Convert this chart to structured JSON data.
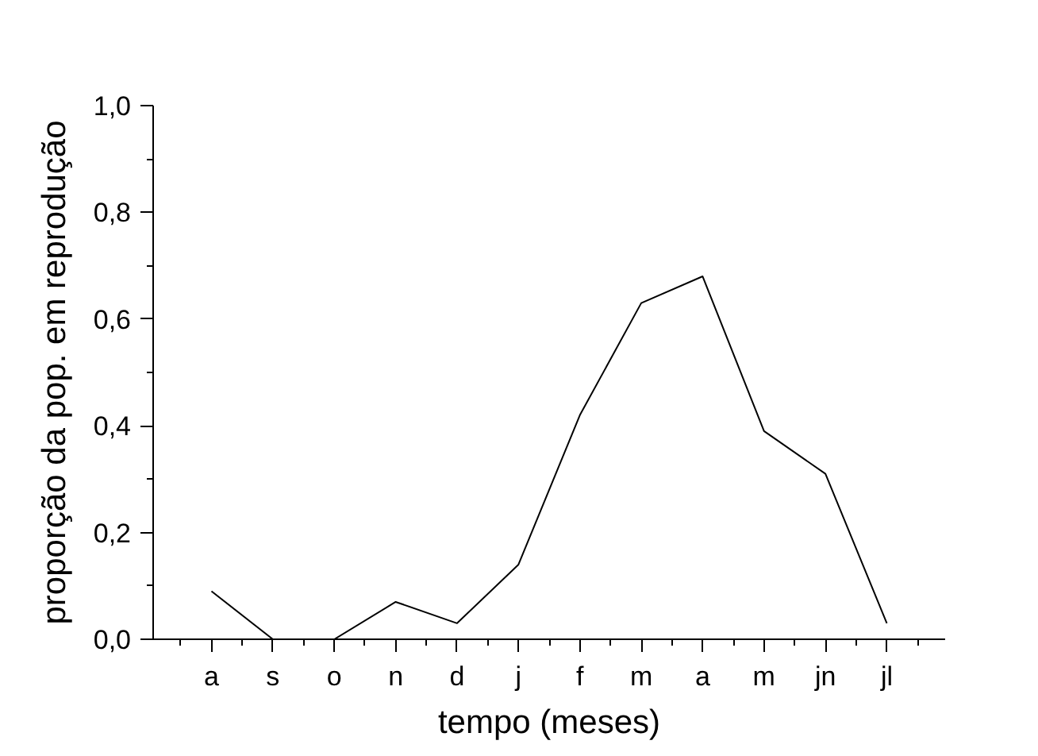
{
  "chart_data": {
    "type": "line",
    "xlabel": "tempo (meses)",
    "ylabel": "proporção da pop. em reprodução",
    "categories": [
      "a",
      "s",
      "o",
      "n",
      "d",
      "j",
      "f",
      "m",
      "a",
      "m",
      "jn",
      "jl"
    ],
    "series": [
      {
        "color": "#000000",
        "values": [
          0.09,
          0.0,
          null,
          null,
          null,
          null,
          null,
          null,
          null,
          null,
          null,
          null
        ]
      },
      {
        "color": "#000000",
        "values": [
          null,
          null,
          0.0,
          0.07,
          0.03,
          0.14,
          0.42,
          0.63,
          0.68,
          0.39,
          0.31,
          0.03
        ]
      }
    ],
    "ylim": [
      0,
      1.0
    ],
    "yticks": [
      {
        "value": 0,
        "label": "0,0"
      },
      {
        "value": 0.2,
        "label": "0,2"
      },
      {
        "value": 0.4,
        "label": "0,4"
      },
      {
        "value": 0.6,
        "label": "0,6"
      },
      {
        "value": 0.8,
        "label": "0,8"
      },
      {
        "value": 1.0,
        "label": "1,0"
      }
    ],
    "grid": false,
    "marker": "none",
    "line_style": "solid"
  }
}
